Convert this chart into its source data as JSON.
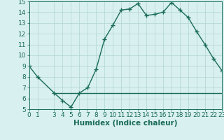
{
  "x": [
    0,
    1,
    3,
    4,
    5,
    6,
    7,
    8,
    9,
    10,
    11,
    12,
    13,
    14,
    15,
    16,
    17,
    18,
    19,
    20,
    21,
    22,
    23
  ],
  "y": [
    9.0,
    8.0,
    6.5,
    5.8,
    5.2,
    6.5,
    7.0,
    8.7,
    11.5,
    12.8,
    14.2,
    14.3,
    14.8,
    13.7,
    13.8,
    14.0,
    14.9,
    14.2,
    13.5,
    12.2,
    11.0,
    9.7,
    8.6
  ],
  "hline_y": 6.5,
  "hline_x_start": 3,
  "hline_x_end": 23,
  "line_color": "#1a6b5a",
  "bg_color": "#d8f0ef",
  "grid_color": "#b0d4d4",
  "xlabel": "Humidex (Indice chaleur)",
  "ylim": [
    5,
    15
  ],
  "xlim": [
    0,
    23
  ],
  "yticks": [
    5,
    6,
    7,
    8,
    9,
    10,
    11,
    12,
    13,
    14,
    15
  ],
  "xticks": [
    0,
    1,
    3,
    4,
    5,
    6,
    7,
    8,
    9,
    10,
    11,
    12,
    13,
    14,
    15,
    16,
    17,
    18,
    19,
    20,
    21,
    22,
    23
  ],
  "tick_fontsize": 6.5,
  "xlabel_fontsize": 7.5,
  "markersize": 2.5,
  "linewidth": 1.0
}
